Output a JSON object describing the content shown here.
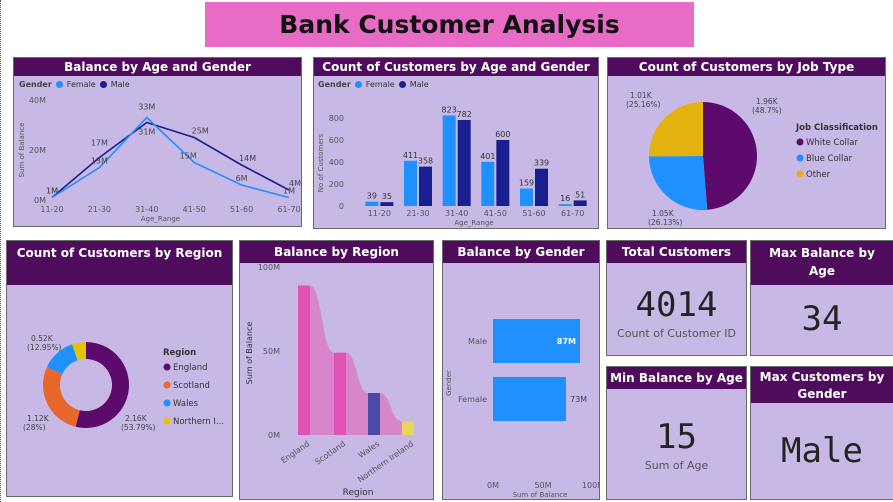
{
  "title": "Bank Customer Analysis",
  "colors": {
    "female": "#1e90ff",
    "male": "#1a1f8f",
    "header": "#4f0c5c",
    "card": "#c8b8e6"
  },
  "balance_age_gender": {
    "title": "Balance by Age and Gender",
    "legend_label": "Gender",
    "female_label": "Female",
    "male_label": "Male",
    "ylabel": "Sum of Balance",
    "xlabel": "Age_Range",
    "yticks": [
      "40M",
      "20M",
      "0M"
    ],
    "categories": [
      "11-20",
      "21-30",
      "31-40",
      "41-50",
      "51-60",
      "61-70"
    ],
    "female_values": [
      1,
      13,
      33,
      15,
      6,
      1
    ],
    "male_values": [
      1,
      17,
      31,
      25,
      14,
      4
    ],
    "female_labels": [
      "1M",
      "13M",
      "33M",
      "15M",
      "6M",
      "1M"
    ],
    "male_labels": [
      "1M",
      "17M",
      "31M",
      "25M",
      "14M",
      "4M"
    ]
  },
  "count_age_gender": {
    "title": "Count of Customers by Age and Gender",
    "legend_label": "Gender",
    "female_label": "Female",
    "male_label": "Male",
    "ylabel": "No of Customers",
    "xlabel": "Age_Range",
    "yticks": [
      "800",
      "600",
      "400",
      "200",
      "0"
    ],
    "categories": [
      "11-20",
      "21-30",
      "31-40",
      "41-50",
      "51-60",
      "61-70"
    ],
    "female_values": [
      39,
      411,
      823,
      401,
      159,
      16
    ],
    "male_values": [
      35,
      358,
      782,
      600,
      339,
      51
    ]
  },
  "job_type": {
    "title": "Count of Customers by Job Type",
    "legend_title": "Job Classification",
    "slices": [
      {
        "name": "White Collar",
        "value": 1960,
        "label": "1.96K",
        "pct": "(48.7%)",
        "color": "#5c0a6b"
      },
      {
        "name": "Blue Collar",
        "value": 1050,
        "label": "1.05K",
        "pct": "(26.13%)",
        "color": "#1e90ff"
      },
      {
        "name": "Other",
        "value": 1010,
        "label": "1.01K",
        "pct": "(25.16%)",
        "color": "#e3b20e"
      }
    ]
  },
  "region_count": {
    "title": "Count of Customers by Region",
    "legend_title": "Region",
    "slices": [
      {
        "name": "England",
        "value": 2160,
        "label": "2.16K",
        "pct": "(53.79%)",
        "color": "#5c0a6b"
      },
      {
        "name": "Scotland",
        "value": 1120,
        "label": "1.12K",
        "pct": "(28%)",
        "color": "#e8682b"
      },
      {
        "name": "Wales",
        "value": 520,
        "label": "0.52K",
        "pct": "(12.95%)",
        "color": "#1e90ff"
      },
      {
        "name": "Northern I...",
        "value": 210,
        "label": "",
        "pct": "",
        "color": "#e3c20e"
      }
    ]
  },
  "balance_region": {
    "title": "Balance by Region",
    "ylabel": "Sum of Balance",
    "xlabel": "Region",
    "yticks": [
      "100M",
      "50M",
      "0M"
    ],
    "categories": [
      "England",
      "Scotland",
      "Wales",
      "Northern Ireland"
    ],
    "values": [
      89,
      49,
      25,
      8
    ]
  },
  "balance_gender": {
    "title": "Balance by Gender",
    "ylabel": "Gender",
    "xlabel": "Sum of Balance",
    "xticks": [
      "0M",
      "50M",
      "100M"
    ],
    "categories": [
      "Male",
      "Female"
    ],
    "values": [
      87,
      73
    ],
    "labels": [
      "87M",
      "73M"
    ]
  },
  "kpi_total": {
    "title": "Total Customers",
    "value": "4014",
    "sub": "Count of Customer ID"
  },
  "kpi_max_balance_age": {
    "title": "Max Balance by Age",
    "value": "34"
  },
  "kpi_min_balance_age": {
    "title": "Min Balance by Age",
    "value": "15",
    "sub": "Sum of Age"
  },
  "kpi_max_customers_gender": {
    "title": "Max Customers by Gender",
    "value": "Male"
  }
}
